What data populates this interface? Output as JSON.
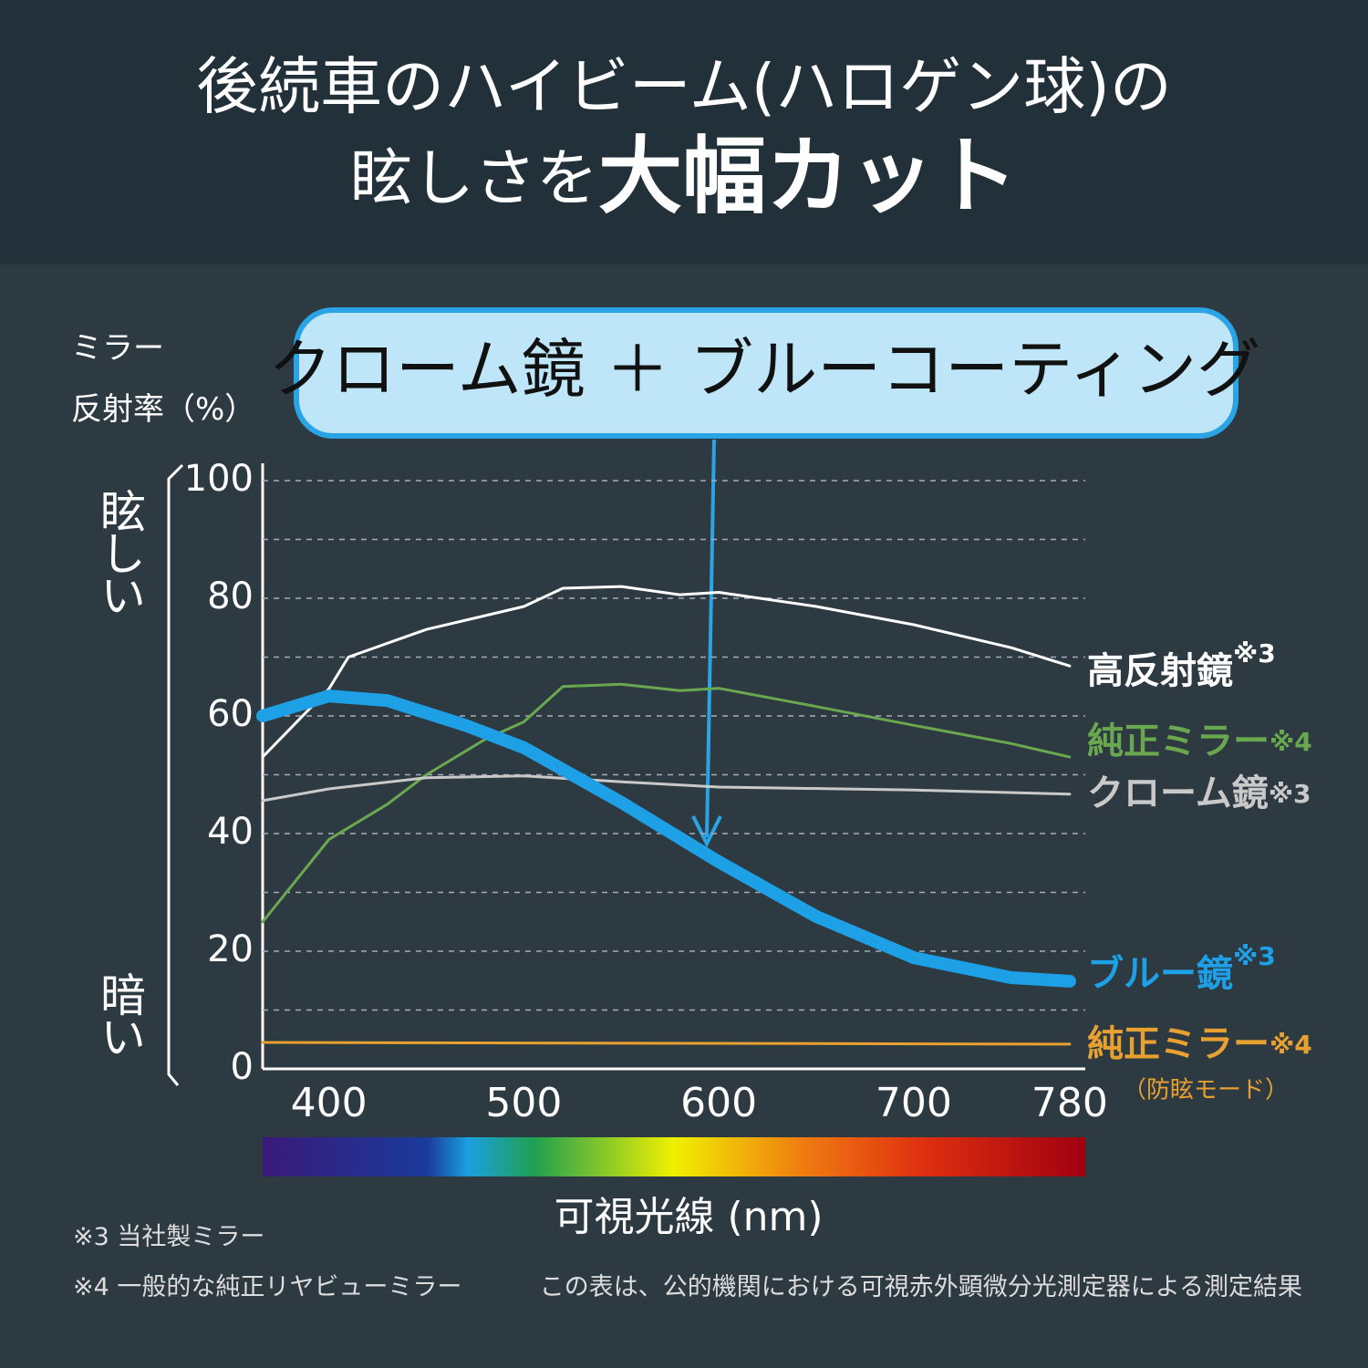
{
  "chart_data": {
    "type": "line",
    "title": "後続車のハイビーム(ハロゲン球)の",
    "title2": "眩しさを",
    "title_emphasis": "大幅カット",
    "callout": "クローム鏡 ＋ ブルーコーティング",
    "ylabel": [
      "ミラー",
      "反射率（%）"
    ],
    "side_top": "眩しい",
    "side_bottom": "暗い",
    "xlabel": "可視光線 (nm)",
    "footnotes": [
      "※3 当社製ミラー",
      "※4 一般的な純正リヤビューミラー"
    ],
    "source": "この表は、公的機関における可視赤外顕微分光測定器による測定結果",
    "xlim": [
      366,
      788
    ],
    "xticks": [
      400,
      500,
      600,
      700,
      780
    ],
    "ylim": [
      0,
      100
    ],
    "yticks": [
      0,
      20,
      40,
      60,
      80,
      100
    ],
    "minor_yticks": [
      10,
      30,
      50,
      70,
      90
    ],
    "grid": true,
    "series": [
      {
        "name": "高反射鏡",
        "note": "※3",
        "color": "#ffffff",
        "x": [
          366,
          400,
          410,
          450,
          500,
          520,
          550,
          580,
          600,
          650,
          700,
          750,
          780
        ],
        "values": [
          53,
          64.6,
          70,
          74.7,
          78.6,
          81.7,
          82,
          80.6,
          81,
          78.6,
          75.5,
          71.6,
          68.5
        ]
      },
      {
        "name": "純正ミラー",
        "note": "※4",
        "color": "#6aa84f",
        "x": [
          366,
          400,
          430,
          450,
          480,
          500,
          520,
          550,
          580,
          600,
          650,
          700,
          750,
          780
        ],
        "values": [
          25,
          39,
          45,
          50,
          56,
          59,
          65,
          65.4,
          64.3,
          64.7,
          61.6,
          58.4,
          55.3,
          53
        ]
      },
      {
        "name": "クローム鏡",
        "note": "※3",
        "color": "#c9c9c9",
        "x": [
          366,
          400,
          450,
          500,
          550,
          600,
          700,
          780
        ],
        "values": [
          45.6,
          47.6,
          49.5,
          49.8,
          48.8,
          47.9,
          47.4,
          46.7
        ]
      },
      {
        "name": "ブルー鏡",
        "note": "※3",
        "color": "#1ea0e6",
        "x": [
          366,
          400,
          430,
          470,
          500,
          550,
          600,
          650,
          700,
          750,
          780
        ],
        "values": [
          60,
          63.4,
          62.6,
          58.4,
          54.6,
          45.3,
          35.2,
          25.9,
          18.9,
          15.5,
          14.9
        ]
      },
      {
        "name": "純正ミラー",
        "note": "※4",
        "subnote": "（防眩モード）",
        "color": "#e8a030",
        "x": [
          366,
          780
        ],
        "values": [
          4.5,
          4.2
        ]
      }
    ]
  }
}
